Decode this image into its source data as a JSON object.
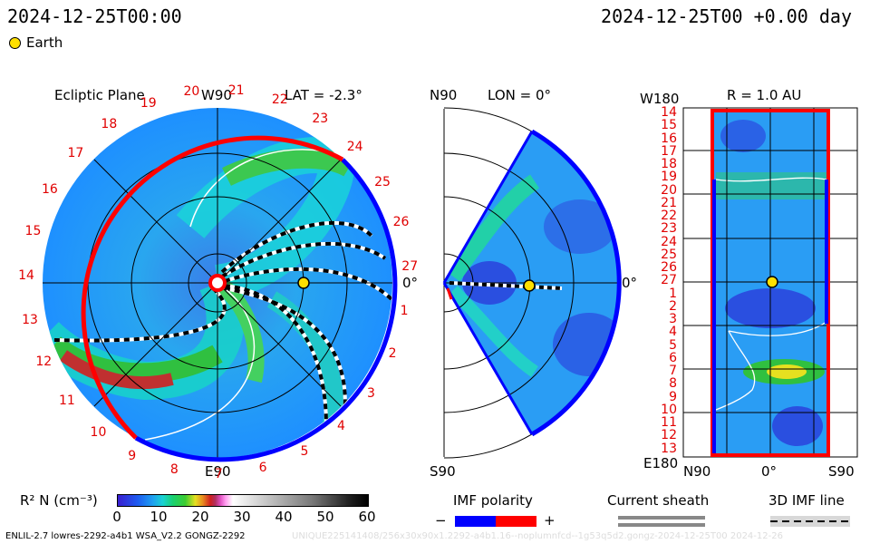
{
  "header": {
    "left_time": "2024-12-25T00:00",
    "right_time": "2024-12-25T00 +0.00 day",
    "legend_label": "Earth"
  },
  "colors": {
    "earth": "#ffe000",
    "imf_negative": "#0000ff",
    "imf_positive": "#ff0000",
    "sheath": "#888888",
    "background_field": "#2a9df4"
  },
  "panels": {
    "ecliptic": {
      "title": "Ecliptic Plane",
      "top_label": "W90",
      "lat_label": "LAT = -2.3°",
      "bottom_label": "E90",
      "right_label": "0°",
      "sector_numbers": [
        "20",
        "21",
        "22",
        "23",
        "24",
        "25",
        "26",
        "27",
        "1",
        "2",
        "3",
        "4",
        "5",
        "6",
        "7",
        "8",
        "9",
        "10",
        "11",
        "12",
        "13",
        "14",
        "15",
        "16",
        "17",
        "18",
        "19"
      ]
    },
    "meridional": {
      "top_label": "N90",
      "lon_label": "LON = 0°",
      "bottom_label": "S90",
      "right_label": "0°"
    },
    "synoptic": {
      "top_left_label": "W180",
      "title": "R = 1.0 AU",
      "bottom_left_label": "E180",
      "x_left": "N90",
      "x_mid": "0°",
      "x_right": "S90",
      "row_labels": [
        "14",
        "15",
        "16",
        "17",
        "18",
        "19",
        "20",
        "21",
        "22",
        "23",
        "24",
        "25",
        "26",
        "27",
        "1",
        "2",
        "3",
        "4",
        "5",
        "6",
        "7",
        "8",
        "9",
        "10",
        "11",
        "12",
        "13"
      ]
    }
  },
  "colorbar": {
    "label": "R² N (cm⁻³)",
    "ticks": [
      "0",
      "10",
      "20",
      "30",
      "40",
      "50",
      "60"
    ]
  },
  "imf_legend": {
    "title": "IMF polarity",
    "minus": "−",
    "plus": "+"
  },
  "sheath_legend": {
    "title": "Current sheath"
  },
  "imfline_legend": {
    "title": "3D IMF line"
  },
  "footer": {
    "left": "ENLIL-2.7 lowres-2292-a4b1 WSA_V2.2 GONGZ-2292",
    "right": "UNIQUE225141408/256x30x90x1.2292-a4b1.16--noplumnfcd--1g53q5d2.gongz-2024-12-25T00   2024-12-26"
  },
  "chart_data": {
    "type": "heatmap",
    "title": "R² N (cm⁻³)",
    "scale": {
      "min": 0,
      "max": 60
    },
    "observer": "Earth",
    "time": "2024-12-25T00 +0.00 day",
    "panels": [
      "Ecliptic Plane",
      "LON = 0°",
      "R = 1.0 AU"
    ]
  }
}
